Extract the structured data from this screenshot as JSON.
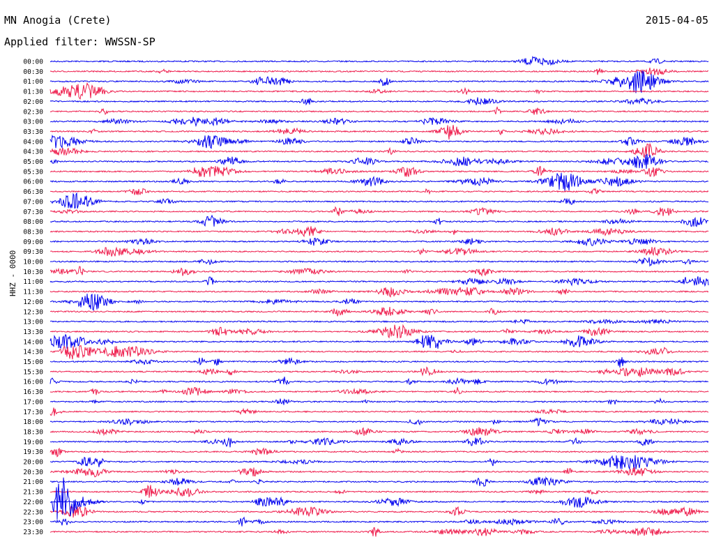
{
  "header": {
    "station": "MN Anogia (Crete)",
    "date": "2015-04-05",
    "filter_label": "Applied filter: WWSSN-SP"
  },
  "channel_label": "HHZ - 0000",
  "colors": {
    "trace_a": "#0000ee",
    "trace_b": "#ee1c4c",
    "text": "#000000",
    "background": "#ffffff"
  },
  "time_labels": [
    "00:00",
    "00:30",
    "01:00",
    "01:30",
    "02:00",
    "02:30",
    "03:00",
    "03:30",
    "04:00",
    "04:30",
    "05:00",
    "05:30",
    "06:00",
    "06:30",
    "07:00",
    "07:30",
    "08:00",
    "08:30",
    "09:00",
    "09:30",
    "10:00",
    "10:30",
    "11:00",
    "11:30",
    "12:00",
    "12:30",
    "13:00",
    "13:30",
    "14:00",
    "14:30",
    "15:00",
    "15:30",
    "16:00",
    "16:30",
    "17:00",
    "17:30",
    "18:00",
    "18:30",
    "19:00",
    "19:30",
    "20:00",
    "20:30",
    "21:00",
    "21:30",
    "22:00",
    "22:30",
    "23:00",
    "23:30"
  ]
}
